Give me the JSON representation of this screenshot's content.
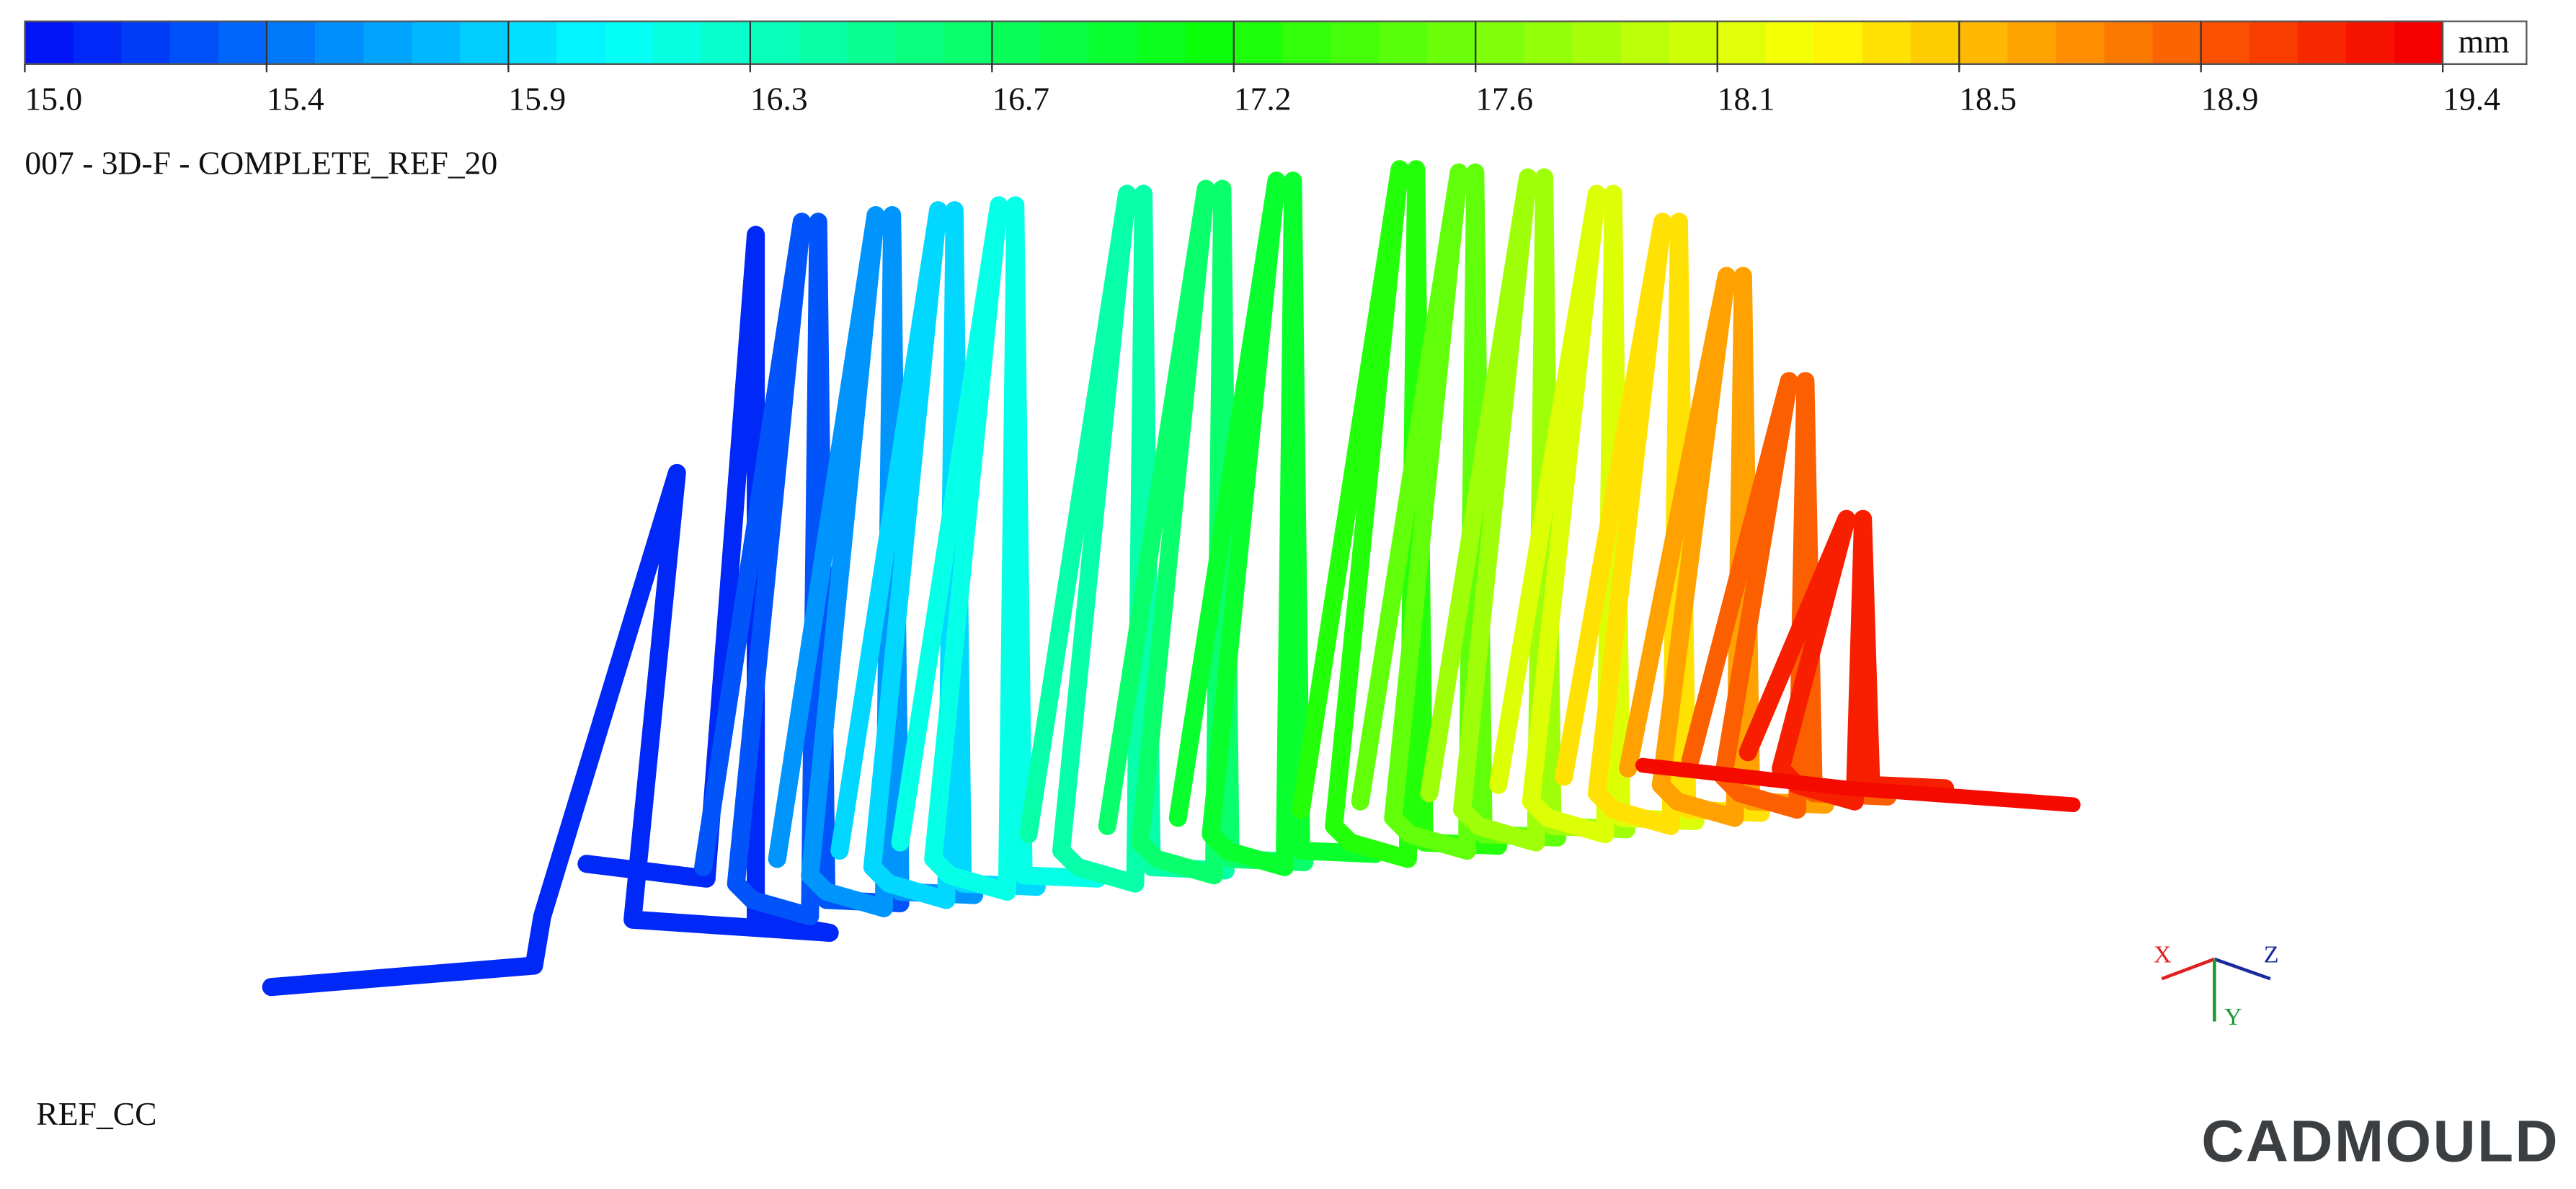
{
  "legend": {
    "unit": "mm",
    "ticks": [
      "15.0",
      "15.4",
      "15.9",
      "16.3",
      "16.7",
      "17.2",
      "17.6",
      "18.1",
      "18.5",
      "18.9",
      "19.4"
    ]
  },
  "model_title": "007 - 3D-F - COMPLETE_REF_20",
  "model_name": "REF_CC",
  "brand": "CADMOULD",
  "triad": {
    "x": "X",
    "y": "Y",
    "z": "Z"
  }
}
